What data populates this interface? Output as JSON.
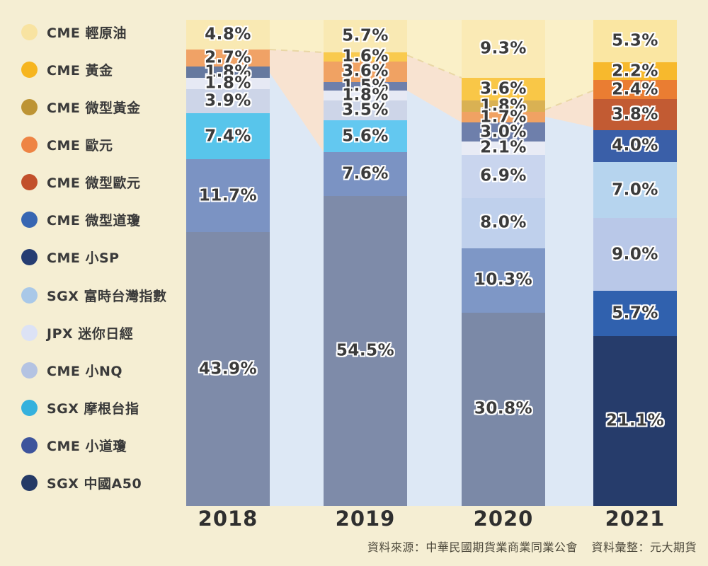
{
  "background_color": "#f5eed3",
  "ribbon_colors": {
    "yellow": "#faf0c8",
    "peach": "#f8e3d1",
    "blue": "#dde8f5",
    "dash_line": "#e9d7a5"
  },
  "footer": {
    "source": "資料來源：中華民國期貨業商業同業公會",
    "compiled": "資料彙整：元大期貨"
  },
  "chart_data": {
    "type": "bar",
    "subtype": "stacked-percentage-columns",
    "unit": "%",
    "x_labels": [
      "2018",
      "2019",
      "2020",
      "2021"
    ],
    "legend_position": "left",
    "legend": [
      {
        "label": "CME 輕原油",
        "color": "#f8e3a1"
      },
      {
        "label": "CME 黃金",
        "color": "#f6b51f"
      },
      {
        "label": "CME 微型黃金",
        "color": "#bd9434"
      },
      {
        "label": "CME 歐元",
        "color": "#ee8444"
      },
      {
        "label": "CME 微型歐元",
        "color": "#c2502b"
      },
      {
        "label": "CME 微型道瓊",
        "color": "#3766b2"
      },
      {
        "label": "CME 小SP",
        "color": "#263d72"
      },
      {
        "label": "SGX 富時台灣指數",
        "color": "#a9c8e8"
      },
      {
        "label": "JPX 迷你日經",
        "color": "#dce2f5"
      },
      {
        "label": "CME 小NQ",
        "color": "#b4c3e2"
      },
      {
        "label": "SGX 摩根台指",
        "color": "#35b1dd"
      },
      {
        "label": "CME 小道瓊",
        "color": "#3d549c"
      },
      {
        "label": "SGX 中國A50",
        "color": "#253a66"
      }
    ],
    "bars": [
      {
        "year": "2018",
        "segments": [
          {
            "product": "CME 輕原油",
            "value": 4.8,
            "color": "#f9e9b3"
          },
          {
            "product": "CME 歐元",
            "value": 2.7,
            "color": "#f0a266"
          },
          {
            "product": "CME 小SP",
            "value": 1.8,
            "color": "#66799f"
          },
          {
            "product": "JPX 迷你日經",
            "value": 1.8,
            "color": "#e6e9f4"
          },
          {
            "product": "CME 小NQ",
            "value": 3.9,
            "color": "#cdd5e8"
          },
          {
            "product": "SGX 摩根台指",
            "value": 7.4,
            "color": "#58c5eb"
          },
          {
            "product": "CME 小道瓊",
            "value": 11.7,
            "color": "#7b93c3"
          },
          {
            "product": "SGX 中國A50",
            "value": 43.9,
            "color": "#7e8ba9"
          }
        ]
      },
      {
        "year": "2019",
        "segments": [
          {
            "product": "CME 輕原油",
            "value": 5.7,
            "color": "#f9e9b3"
          },
          {
            "product": "CME 黃金",
            "value": 1.6,
            "color": "#f9ca4e"
          },
          {
            "product": "CME 歐元",
            "value": 3.6,
            "color": "#f0a263"
          },
          {
            "product": "CME 小SP",
            "value": 1.5,
            "color": "#6e7fab"
          },
          {
            "product": "JPX 迷你日經",
            "value": 1.8,
            "color": "#e6e9f4"
          },
          {
            "product": "CME 小NQ",
            "value": 3.5,
            "color": "#cdd5e8"
          },
          {
            "product": "SGX 摩根台指",
            "value": 5.6,
            "color": "#63c8f0"
          },
          {
            "product": "CME 小道瓊",
            "value": 7.6,
            "color": "#7b93c3"
          },
          {
            "product": "SGX 中國A50",
            "value": 54.5,
            "color": "#7e8ba9"
          }
        ]
      },
      {
        "year": "2020",
        "segments": [
          {
            "product": "CME 輕原油",
            "value": 9.3,
            "color": "#faeab5"
          },
          {
            "product": "CME 黃金",
            "value": 3.6,
            "color": "#f9c747"
          },
          {
            "product": "CME 微型黃金",
            "value": 1.8,
            "color": "#d9b153"
          },
          {
            "product": "CME 歐元",
            "value": 1.7,
            "color": "#f0a263"
          },
          {
            "product": "CME 小SP",
            "value": 3.0,
            "color": "#6e7fab"
          },
          {
            "product": "JPX 迷你日經",
            "value": 2.1,
            "color": "#e8ebf5"
          },
          {
            "product": "SGX 富時台灣指數",
            "value": 6.9,
            "color": "#c9d5ee"
          },
          {
            "product": "CME 小NQ",
            "value": 8.0,
            "color": "#bfd0ec"
          },
          {
            "product": "CME 小道瓊",
            "value": 10.3,
            "color": "#7e97c6"
          },
          {
            "product": "SGX 中國A50",
            "value": 30.8,
            "color": "#7b89a7"
          }
        ]
      },
      {
        "year": "2021",
        "segments": [
          {
            "product": "CME 輕原油",
            "value": 5.3,
            "color": "#fae6a2"
          },
          {
            "product": "CME 黃金",
            "value": 2.2,
            "color": "#f7b92d"
          },
          {
            "product": "CME 歐元",
            "value": 2.4,
            "color": "#ea7d32"
          },
          {
            "product": "CME 微型歐元",
            "value": 3.8,
            "color": "#c25b33"
          },
          {
            "product": "CME 微型道瓊",
            "value": 4.0,
            "color": "#3a5fa8"
          },
          {
            "product": "SGX 富時台灣指數",
            "value": 7.0,
            "color": "#b6d4ee"
          },
          {
            "product": "CME 小NQ",
            "value": 9.0,
            "color": "#b9c8e8"
          },
          {
            "product": "CME 小道瓊",
            "value": 5.7,
            "color": "#3061ae"
          },
          {
            "product": "SGX 中國A50",
            "value": 21.1,
            "color": "#263c6b"
          }
        ]
      }
    ]
  }
}
